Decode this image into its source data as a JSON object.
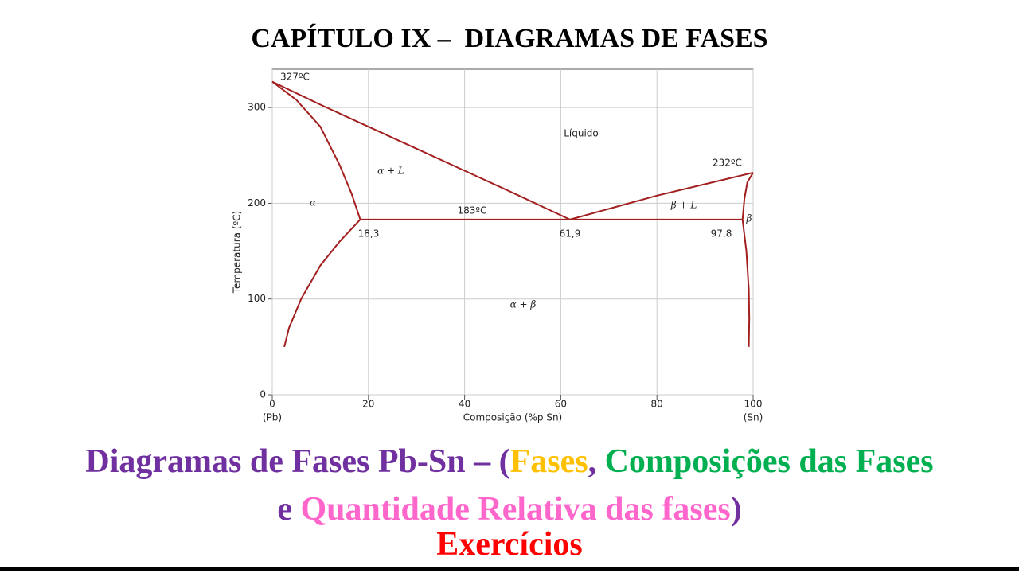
{
  "header": {
    "title": "CAPÍTULO IX –  DIAGRAMAS DE FASES"
  },
  "chart_data": {
    "type": "line",
    "xlabel": "Composição (%p Sn)",
    "ylabel": "Temperatura (ºC)",
    "x_end_labels": [
      "(Pb)",
      "(Sn)"
    ],
    "xlim": [
      0,
      100
    ],
    "xticks": [
      0,
      20,
      40,
      60,
      80,
      100
    ],
    "ylim": [
      0,
      340
    ],
    "yticks": [
      0,
      100,
      200,
      300
    ],
    "grid": true,
    "series": [
      {
        "color": "#a31f1f",
        "x": [
          0,
          10,
          20,
          30,
          40,
          50,
          61.9
        ],
        "values": [
          327,
          303,
          280,
          257,
          234,
          211,
          183
        ]
      },
      {
        "color": "#a31f1f",
        "x": [
          0,
          5,
          10,
          14,
          16.5,
          18.3
        ],
        "values": [
          327,
          308,
          280,
          240,
          210,
          183
        ]
      },
      {
        "color": "#a31f1f",
        "x": [
          18.3,
          14,
          10,
          6,
          3.5,
          2.5
        ],
        "values": [
          183,
          160,
          135,
          100,
          70,
          50
        ]
      },
      {
        "color": "#a31f1f",
        "x": [
          61.9,
          80,
          100
        ],
        "values": [
          183,
          208,
          232
        ]
      },
      {
        "color": "#a31f1f",
        "x": [
          97.8,
          98.2,
          98.8,
          100
        ],
        "values": [
          183,
          205,
          222,
          232
        ]
      },
      {
        "color": "#a31f1f",
        "x": [
          97.8,
          98.6,
          99.1,
          99.2,
          99.1
        ],
        "values": [
          183,
          150,
          110,
          80,
          50
        ]
      },
      {
        "color": "#a31f1f",
        "x": [
          18.3,
          97.8
        ],
        "values": [
          183,
          183
        ]
      }
    ],
    "annotations": [
      "327ºC",
      "232ºC",
      "183ºC",
      "18,3",
      "61,9",
      "97,8",
      "Líquido",
      "α + L",
      "α",
      "β + L",
      "β",
      "α + β"
    ]
  },
  "footer": {
    "lines": [
      [
        {
          "text": "Diagramas de Fases Pb-Sn – (",
          "color": "#7030a0"
        },
        {
          "text": "Fases",
          "color": "#ffc000"
        },
        {
          "text": ", ",
          "color": "#7030a0"
        },
        {
          "text": "Composições das Fases",
          "color": "#00b050"
        }
      ],
      [
        {
          "text": "e ",
          "color": "#7030a0"
        },
        {
          "text": "Quantidade Relativa das fases",
          "color": "#ff66cc"
        },
        {
          "text": ")",
          "color": "#7030a0"
        }
      ],
      [
        {
          "text": "Exercícios",
          "color": "#ff0000"
        }
      ]
    ]
  }
}
